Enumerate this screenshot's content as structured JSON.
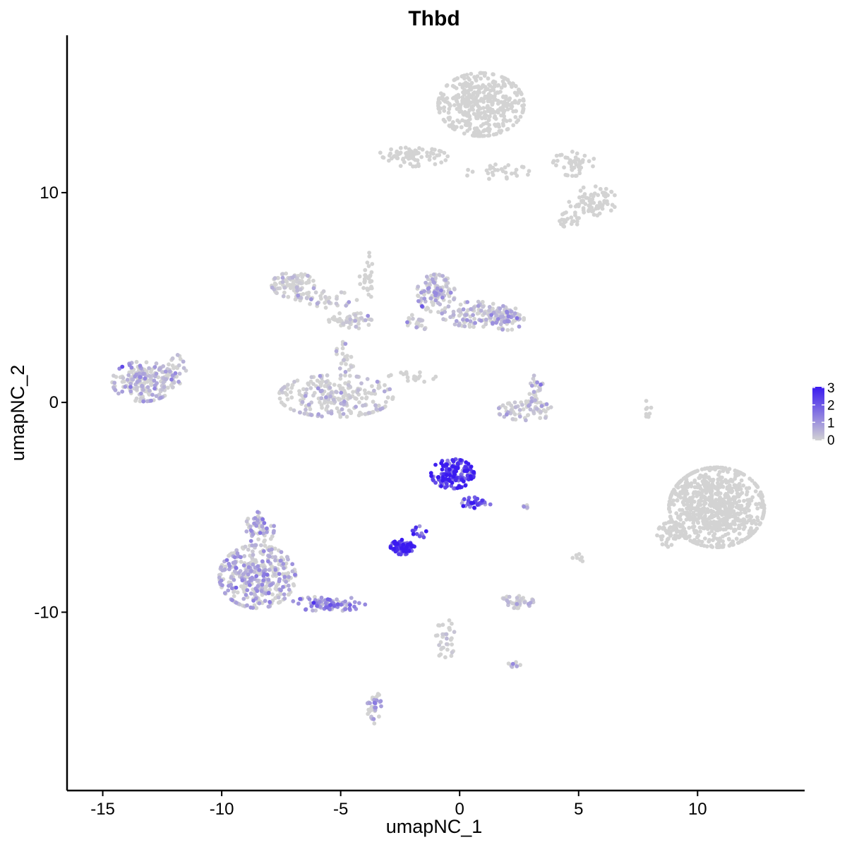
{
  "chart_data": {
    "type": "scatter",
    "title": "Thbd",
    "xlabel": "umapNC_1",
    "ylabel": "umapNC_2",
    "xlim": [
      -16.5,
      14.5
    ],
    "ylim": [
      -18.5,
      17.5
    ],
    "xticks": [
      -15,
      -10,
      -5,
      0,
      5,
      10
    ],
    "yticks": [
      -10,
      0,
      10
    ],
    "grid": false,
    "legend": {
      "placement": "right",
      "values": [
        0,
        1,
        2,
        3
      ],
      "low_color": "#d3d3d3",
      "high_color": "#3a1af0"
    },
    "clusters": [
      {
        "cx": 0.9,
        "cy": 14.2,
        "rx": 1.8,
        "ry": 1.5,
        "n": 420,
        "expr": 0.0
      },
      {
        "cx": -2.0,
        "cy": 11.7,
        "rx": 1.5,
        "ry": 0.45,
        "n": 80,
        "expr": 0.0
      },
      {
        "cx": 1.5,
        "cy": 11.0,
        "rx": 1.5,
        "ry": 0.35,
        "n": 30,
        "expr": 0.0
      },
      {
        "cx": 4.8,
        "cy": 11.4,
        "rx": 0.9,
        "ry": 0.6,
        "n": 45,
        "expr": 0.0
      },
      {
        "cx": 5.6,
        "cy": 9.6,
        "rx": 1.0,
        "ry": 0.7,
        "n": 70,
        "expr": 0.0
      },
      {
        "cx": 4.7,
        "cy": 8.7,
        "rx": 0.5,
        "ry": 0.4,
        "n": 22,
        "expr": 0.0
      },
      {
        "cx": -7.0,
        "cy": 5.6,
        "rx": 0.9,
        "ry": 0.6,
        "n": 90,
        "expr": 0.05
      },
      {
        "cx": -5.6,
        "cy": 4.9,
        "rx": 1.3,
        "ry": 0.4,
        "n": 40,
        "expr": 0.05
      },
      {
        "cx": -4.6,
        "cy": 3.9,
        "rx": 0.9,
        "ry": 0.4,
        "n": 50,
        "expr": 0.05
      },
      {
        "cx": -3.9,
        "cy": 6.0,
        "rx": 0.3,
        "ry": 1.2,
        "n": 30,
        "expr": 0.0
      },
      {
        "cx": -1.0,
        "cy": 5.2,
        "rx": 0.8,
        "ry": 0.9,
        "n": 110,
        "expr": 0.45
      },
      {
        "cx": 0.7,
        "cy": 4.2,
        "rx": 1.5,
        "ry": 0.6,
        "n": 110,
        "expr": 0.4
      },
      {
        "cx": 2.0,
        "cy": 4.0,
        "rx": 0.7,
        "ry": 0.55,
        "n": 70,
        "expr": 0.5
      },
      {
        "cx": -1.8,
        "cy": 3.8,
        "rx": 0.5,
        "ry": 0.4,
        "n": 20,
        "expr": 0.35
      },
      {
        "cx": -5.2,
        "cy": 0.3,
        "rx": 2.4,
        "ry": 1.0,
        "n": 240,
        "expr": 0.15
      },
      {
        "cx": -4.8,
        "cy": 2.2,
        "rx": 0.4,
        "ry": 0.8,
        "n": 25,
        "expr": 0.05
      },
      {
        "cx": -2.0,
        "cy": 1.2,
        "rx": 1.0,
        "ry": 0.25,
        "n": 20,
        "expr": 0.0
      },
      {
        "cx": 2.8,
        "cy": -0.4,
        "rx": 1.2,
        "ry": 0.45,
        "n": 70,
        "expr": 0.25
      },
      {
        "cx": 3.2,
        "cy": 0.7,
        "rx": 0.3,
        "ry": 0.6,
        "n": 25,
        "expr": 0.5
      },
      {
        "cx": -13.3,
        "cy": 1.0,
        "rx": 1.3,
        "ry": 0.95,
        "n": 200,
        "expr": 0.4
      },
      {
        "cx": -12.0,
        "cy": 1.5,
        "rx": 0.5,
        "ry": 0.8,
        "n": 30,
        "expr": 0.2
      },
      {
        "cx": -8.5,
        "cy": -8.3,
        "rx": 1.6,
        "ry": 1.5,
        "n": 380,
        "expr": 0.6
      },
      {
        "cx": -8.4,
        "cy": -6.0,
        "rx": 0.6,
        "ry": 0.8,
        "n": 60,
        "expr": 0.65
      },
      {
        "cx": -5.5,
        "cy": -9.6,
        "rx": 1.6,
        "ry": 0.35,
        "n": 90,
        "expr": 1.1
      },
      {
        "cx": -0.3,
        "cy": -3.4,
        "rx": 0.9,
        "ry": 0.7,
        "n": 150,
        "expr": 2.3
      },
      {
        "cx": 0.7,
        "cy": -4.8,
        "rx": 0.6,
        "ry": 0.35,
        "n": 30,
        "expr": 1.8
      },
      {
        "cx": -2.4,
        "cy": -6.9,
        "rx": 0.5,
        "ry": 0.35,
        "n": 70,
        "expr": 2.2
      },
      {
        "cx": -1.7,
        "cy": -6.2,
        "rx": 0.3,
        "ry": 0.3,
        "n": 12,
        "expr": 1.9
      },
      {
        "cx": 10.8,
        "cy": -5.0,
        "rx": 2.0,
        "ry": 1.9,
        "n": 750,
        "expr": 0.0
      },
      {
        "cx": 8.9,
        "cy": -6.3,
        "rx": 0.6,
        "ry": 0.6,
        "n": 60,
        "expr": 0.0
      },
      {
        "cx": 2.4,
        "cy": -9.5,
        "rx": 0.7,
        "ry": 0.3,
        "n": 40,
        "expr": 0.2
      },
      {
        "cx": 5.0,
        "cy": -7.4,
        "rx": 0.25,
        "ry": 0.25,
        "n": 8,
        "expr": 0.0
      },
      {
        "cx": -0.6,
        "cy": -11.3,
        "rx": 0.4,
        "ry": 1.0,
        "n": 35,
        "expr": 0.05
      },
      {
        "cx": 2.3,
        "cy": -12.5,
        "rx": 0.25,
        "ry": 0.2,
        "n": 10,
        "expr": 0.4
      },
      {
        "cx": -3.6,
        "cy": -14.5,
        "rx": 0.3,
        "ry": 0.8,
        "n": 35,
        "expr": 0.6
      },
      {
        "cx": 2.8,
        "cy": -5.0,
        "rx": 0.15,
        "ry": 0.1,
        "n": 5,
        "expr": 0.8
      },
      {
        "cx": 7.9,
        "cy": -0.3,
        "rx": 0.15,
        "ry": 0.4,
        "n": 8,
        "expr": 0.0
      }
    ]
  }
}
